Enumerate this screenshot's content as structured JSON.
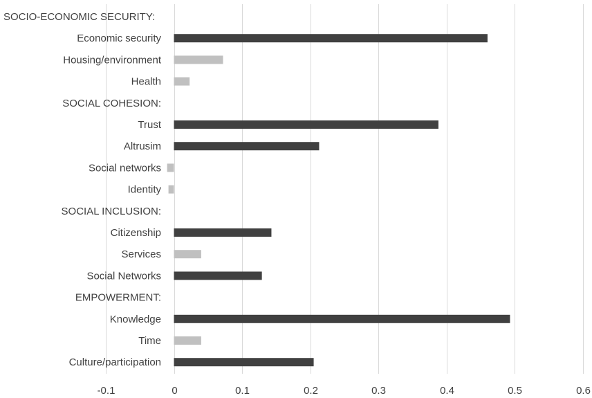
{
  "chart_data": {
    "type": "bar",
    "orientation": "horizontal",
    "categories": [
      "SOCIO-ECONOMIC SECURITY:",
      "Economic security",
      "Housing/environment",
      "Health",
      "SOCIAL COHESION:",
      "Trust",
      "Altrusim",
      "Social networks",
      "Identity",
      "SOCIAL INCLUSION:",
      "Citizenship",
      "Services",
      "Social Networks",
      "EMPOWERMENT:",
      "Knowledge",
      "Time",
      "Culture/participation"
    ],
    "values": [
      null,
      0.46,
      0.072,
      0.023,
      null,
      0.388,
      0.213,
      -0.01,
      -0.008,
      null,
      0.143,
      0.04,
      0.129,
      null,
      0.493,
      0.04,
      0.205
    ],
    "bar_tones": [
      null,
      "dark",
      "light",
      "light",
      null,
      "dark",
      "dark",
      "light",
      "light",
      null,
      "dark",
      "light",
      "dark",
      null,
      "dark",
      "light",
      "dark"
    ],
    "colors": {
      "dark": "#404040",
      "light": "#c0c0c0",
      "grid": "#d9d9d9",
      "text": "#404040"
    },
    "xlim": [
      -0.1,
      0.6
    ],
    "xticks": [
      "-0.1",
      "0",
      "0.1",
      "0.2",
      "0.3",
      "0.4",
      "0.5",
      "0.6"
    ],
    "grid": "vertical",
    "legend": "none",
    "title": "",
    "xlabel": "",
    "ylabel": ""
  }
}
